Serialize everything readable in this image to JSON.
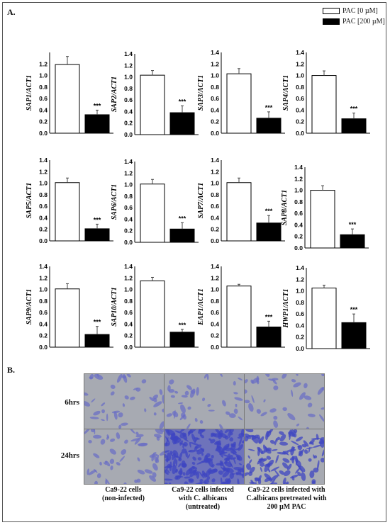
{
  "panel_a_label": "A.",
  "panel_b_label": "B.",
  "legend": [
    {
      "label": "PAC [0 µM]",
      "color": "#ffffff"
    },
    {
      "label": "PAC [200 µM]",
      "color": "#000000"
    }
  ],
  "chart_data": [
    {
      "type": "bar",
      "ylabel": "SAP1/ACT1",
      "categories": [
        "PAC [0 µM]",
        "PAC [200 µM]"
      ],
      "values": [
        1.19,
        0.32
      ],
      "errors": [
        0.14,
        0.08
      ],
      "significance": "***",
      "ylim": [
        0,
        1.4
      ],
      "yticks": [
        "0.0",
        "0.2",
        "0.4",
        "0.6",
        "0.8",
        "1.0",
        "1.2"
      ]
    },
    {
      "type": "bar",
      "ylabel": "SAP2/ACT1",
      "categories": [
        "PAC [0 µM]",
        "PAC [200 µM]"
      ],
      "values": [
        1.03,
        0.38
      ],
      "errors": [
        0.08,
        0.12
      ],
      "significance": "***",
      "ylim": [
        0,
        1.4
      ],
      "yticks": [
        "0.0",
        "0.2",
        "0.4",
        "0.6",
        "0.8",
        "1.0",
        "1.2",
        "1.4"
      ]
    },
    {
      "type": "bar",
      "ylabel": "SAP3/ACT1",
      "categories": [
        "PAC [0 µM]",
        "PAC [200 µM]"
      ],
      "values": [
        1.03,
        0.26
      ],
      "errors": [
        0.09,
        0.11
      ],
      "significance": "***",
      "ylim": [
        0,
        1.4
      ],
      "yticks": [
        "0.0",
        "0.2",
        "0.4",
        "0.6",
        "0.8",
        "1.0",
        "1.2",
        "1.4"
      ]
    },
    {
      "type": "bar",
      "ylabel": "SAP4/ACT1",
      "categories": [
        "PAC [0 µM]",
        "PAC [200 µM]"
      ],
      "values": [
        1.0,
        0.25
      ],
      "errors": [
        0.08,
        0.1
      ],
      "significance": "***",
      "ylim": [
        0,
        1.4
      ],
      "yticks": [
        "0.0",
        "0.2",
        "0.4",
        "0.6",
        "0.8",
        "1.0",
        "1.2",
        "1.4"
      ]
    },
    {
      "type": "bar",
      "ylabel": "SAP5/ACT1",
      "categories": [
        "PAC [0 µM]",
        "PAC [200 µM]"
      ],
      "values": [
        1.01,
        0.21
      ],
      "errors": [
        0.08,
        0.08
      ],
      "significance": "***",
      "ylim": [
        0,
        1.4
      ],
      "yticks": [
        "0.0",
        "0.2",
        "0.4",
        "0.6",
        "0.8",
        "1.0",
        "1.2",
        "1.4"
      ]
    },
    {
      "type": "bar",
      "ylabel": "SAP6/ACT1",
      "categories": [
        "PAC [0 µM]",
        "PAC [200 µM]"
      ],
      "values": [
        1.01,
        0.23
      ],
      "errors": [
        0.08,
        0.11
      ],
      "significance": "***",
      "ylim": [
        0,
        1.4
      ],
      "yticks": [
        "0.0",
        "0.2",
        "0.4",
        "0.6",
        "0.8",
        "1.0",
        "1.2",
        "1.4"
      ]
    },
    {
      "type": "bar",
      "ylabel": "SAP7/ACT1",
      "categories": [
        "PAC [0 µM]",
        "PAC [200 µM]"
      ],
      "values": [
        1.01,
        0.31
      ],
      "errors": [
        0.08,
        0.13
      ],
      "significance": "***",
      "ylim": [
        0,
        1.4
      ],
      "yticks": [
        "0.0",
        "0.2",
        "0.4",
        "0.6",
        "0.8",
        "1.0",
        "1.2",
        "1.4"
      ]
    },
    {
      "type": "bar",
      "ylabel": "SAP8/ACT1",
      "categories": [
        "PAC [0 µM]",
        "PAC [200 µM]"
      ],
      "values": [
        1.0,
        0.23
      ],
      "errors": [
        0.08,
        0.1
      ],
      "significance": "***",
      "ylim": [
        0,
        1.4
      ],
      "yticks": [
        "0.0",
        "0.2",
        "0.4",
        "0.6",
        "0.8",
        "1.0",
        "1.2",
        "1.4"
      ]
    },
    {
      "type": "bar",
      "ylabel": "SAP9/ACT1",
      "categories": [
        "PAC [0 µM]",
        "PAC [200 µM]"
      ],
      "values": [
        1.01,
        0.22
      ],
      "errors": [
        0.09,
        0.14
      ],
      "significance": "***",
      "ylim": [
        0,
        1.4
      ],
      "yticks": [
        "0.0",
        "0.2",
        "0.4",
        "0.6",
        "0.8",
        "1.0",
        "1.2",
        "1.4"
      ]
    },
    {
      "type": "bar",
      "ylabel": "SAP10/ACT1",
      "categories": [
        "PAC [0 µM]",
        "PAC [200 µM]"
      ],
      "values": [
        1.15,
        0.26
      ],
      "errors": [
        0.06,
        0.05
      ],
      "significance": "***",
      "ylim": [
        0,
        1.4
      ],
      "yticks": [
        "0.0",
        "0.2",
        "0.4",
        "0.6",
        "0.8",
        "1.0",
        "1.2",
        "1.4"
      ]
    },
    {
      "type": "bar",
      "ylabel": "EAP1/ACT1",
      "categories": [
        "PAC [0 µM]",
        "PAC [200 µM]"
      ],
      "values": [
        1.06,
        0.35
      ],
      "errors": [
        0.03,
        0.1
      ],
      "significance": "***",
      "ylim": [
        0,
        1.4
      ],
      "yticks": [
        "0.0",
        "0.2",
        "0.4",
        "0.6",
        "0.8",
        "1.0",
        "1.2",
        "1.4"
      ]
    },
    {
      "type": "bar",
      "ylabel": "HWP1/ACT1",
      "categories": [
        "PAC [0 µM]",
        "PAC [200 µM]"
      ],
      "values": [
        1.05,
        0.45
      ],
      "errors": [
        0.05,
        0.15
      ],
      "significance": "***",
      "ylim": [
        0,
        1.4
      ],
      "yticks": [
        "0.0",
        "0.2",
        "0.4",
        "0.6",
        "0.8",
        "1.0",
        "1.2",
        "1.4"
      ]
    }
  ],
  "micrographs": {
    "rows": [
      "6hrs",
      "24hrs"
    ],
    "columns": [
      {
        "line1": "Ca9-22 cells",
        "line2": "(non-infected)",
        "line3": ""
      },
      {
        "line1": "Ca9-22 cells infected",
        "line2": "with C. albicans",
        "line3": "(untreated)"
      },
      {
        "line1": "Ca9-22 cells infected with",
        "line2": "C.albicans pretreated with",
        "line3": "200 µM PAC"
      }
    ],
    "colors": {
      "background": "#a7aab2",
      "cell": "#6b6fc4",
      "dense": "#3f45c2"
    }
  }
}
